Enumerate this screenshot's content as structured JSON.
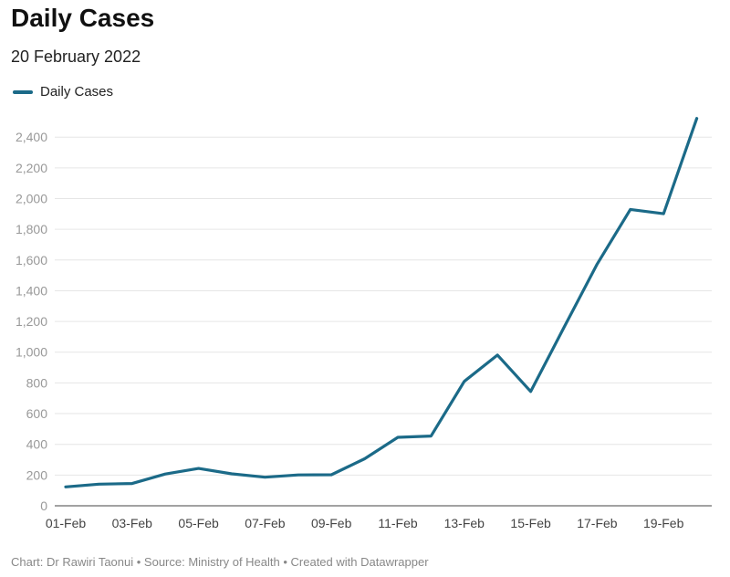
{
  "header": {
    "title": "Daily Cases",
    "subtitle": "20 February 2022"
  },
  "legend": {
    "label": "Daily Cases",
    "color": "#1b6a88"
  },
  "footer": {
    "credit": "Chart: Dr Rawiri Taonui • Source: Ministry of Health • Created with Datawrapper"
  },
  "chart_data": {
    "type": "line",
    "title": "Daily Cases",
    "subtitle": "20 February 2022",
    "xlabel": "",
    "ylabel": "",
    "x": [
      "01-Feb",
      "02-Feb",
      "03-Feb",
      "04-Feb",
      "05-Feb",
      "06-Feb",
      "07-Feb",
      "08-Feb",
      "09-Feb",
      "10-Feb",
      "11-Feb",
      "12-Feb",
      "13-Feb",
      "14-Feb",
      "15-Feb",
      "16-Feb",
      "17-Feb",
      "18-Feb",
      "19-Feb",
      "20-Feb"
    ],
    "x_tick_labels": [
      "01-Feb",
      "03-Feb",
      "05-Feb",
      "07-Feb",
      "09-Feb",
      "11-Feb",
      "13-Feb",
      "15-Feb",
      "17-Feb",
      "19-Feb"
    ],
    "series": [
      {
        "name": "Daily Cases",
        "color": "#1b6a88",
        "values": [
          123,
          141,
          145,
          207,
          243,
          208,
          186,
          201,
          202,
          306,
          446,
          454,
          810,
          981,
          744,
          1160,
          1573,
          1929,
          1901,
          2522
        ]
      }
    ],
    "y_ticks": [
      0,
      200,
      400,
      600,
      800,
      1000,
      1200,
      1400,
      1600,
      1800,
      2000,
      2200,
      2400
    ],
    "y_tick_labels": [
      "0",
      "200",
      "400",
      "600",
      "800",
      "1,000",
      "1,200",
      "1,400",
      "1,600",
      "1,800",
      "2,000",
      "2,200",
      "2,400"
    ],
    "ylim": [
      0,
      2520
    ],
    "grid": true,
    "legend_position": "top-left"
  }
}
